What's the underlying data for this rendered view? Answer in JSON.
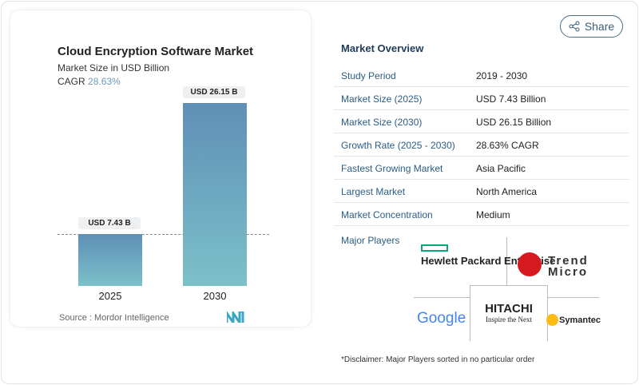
{
  "chart_data": {
    "type": "bar",
    "title": "Cloud Encryption Software Market",
    "subtitle": "Market Size in USD Billion",
    "cagr_label": "CAGR",
    "cagr_value": "28.63%",
    "categories": [
      "2025",
      "2030"
    ],
    "values": [
      7.43,
      26.15
    ],
    "data_labels": [
      "USD 7.43 B",
      "USD 26.15 B"
    ],
    "ylim": [
      0,
      28
    ],
    "grid": false,
    "bar_colors": [
      "#5f8fb6",
      "#7cc0c9"
    ],
    "source": "Source :  Mordor Intelligence"
  },
  "share_label": "Share",
  "overview": {
    "title": "Market Overview",
    "rows": [
      {
        "k": "Study Period",
        "v": "2019 - 2030"
      },
      {
        "k": "Market Size (2025)",
        "v": "USD 7.43 Billion"
      },
      {
        "k": "Market Size (2030)",
        "v": "USD 26.15 Billion"
      },
      {
        "k": "Growth Rate (2025 - 2030)",
        "v": "28.63% CAGR"
      },
      {
        "k": "Fastest Growing Market",
        "v": "Asia Pacific"
      },
      {
        "k": "Largest Market",
        "v": "North America"
      },
      {
        "k": "Market Concentration",
        "v": "Medium"
      }
    ],
    "major_players_label": "Major Players",
    "players": [
      "Hewlett Packard Enterprise",
      "Trend Micro",
      "Google",
      "Hitachi",
      "Symantec"
    ],
    "disclaimer": "*Disclaimer: Major Players sorted in no particular order"
  }
}
